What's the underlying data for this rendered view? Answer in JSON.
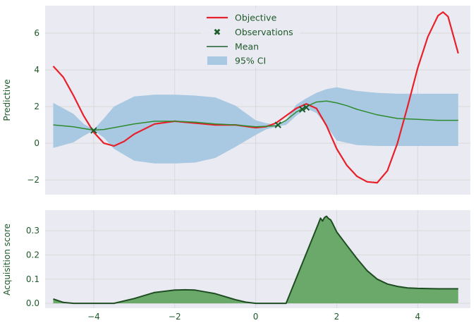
{
  "colors": {
    "objective": "#e8202a",
    "observations": "#1f5e2c",
    "mean": "#2e8b2e",
    "ci": "#a9c8e2",
    "acquisition_fill": "#6aa96a",
    "acquisition_line": "#1f4d22",
    "grid": "#d9d9d9",
    "panel_bg": "#eaeaf2",
    "tick_text": "#1e5a2a"
  },
  "chart_data": [
    {
      "type": "line",
      "ylabel": "Predictive",
      "xlim": [
        -5.2,
        5.3
      ],
      "ylim": [
        -2.8,
        7.5
      ],
      "x_ticks": [
        -4,
        -2,
        0,
        2,
        4
      ],
      "y_ticks": [
        -2,
        0,
        2,
        4,
        6
      ],
      "y_tick_labels": [
        "−2",
        "0",
        "2",
        "4",
        "6"
      ],
      "grid": true,
      "legend_position": "top-center",
      "legend": [
        "Objective",
        "Observations",
        "Mean",
        "95% CI"
      ],
      "series": [
        {
          "name": "Objective",
          "x": [
            -5.0,
            -4.75,
            -4.5,
            -4.25,
            -4.0,
            -3.75,
            -3.5,
            -3.25,
            -3.0,
            -2.5,
            -2.0,
            -1.5,
            -1.0,
            -0.5,
            0.0,
            0.25,
            0.5,
            0.75,
            1.0,
            1.25,
            1.5,
            1.75,
            2.0,
            2.25,
            2.5,
            2.75,
            3.0,
            3.25,
            3.5,
            3.75,
            4.0,
            4.25,
            4.5,
            4.625,
            4.75,
            5.0
          ],
          "y": [
            4.2,
            3.6,
            2.6,
            1.5,
            0.6,
            0.0,
            -0.15,
            0.1,
            0.5,
            1.05,
            1.2,
            1.1,
            1.0,
            1.0,
            0.85,
            0.9,
            1.1,
            1.5,
            1.9,
            2.15,
            1.9,
            0.95,
            -0.3,
            -1.2,
            -1.8,
            -2.1,
            -2.15,
            -1.5,
            0.0,
            2.0,
            4.1,
            5.8,
            6.95,
            7.15,
            6.9,
            4.9
          ]
        },
        {
          "name": "Mean",
          "x": [
            -5.0,
            -4.5,
            -4.25,
            -4.0,
            -3.75,
            -3.5,
            -3.0,
            -2.5,
            -2.0,
            -1.5,
            -1.0,
            -0.5,
            0.0,
            0.5,
            0.75,
            1.0,
            1.25,
            1.5,
            1.75,
            2.0,
            2.25,
            2.5,
            3.0,
            3.5,
            4.0,
            4.5,
            5.0
          ],
          "y": [
            1.0,
            0.9,
            0.8,
            0.72,
            0.75,
            0.85,
            1.05,
            1.2,
            1.2,
            1.15,
            1.05,
            1.0,
            0.9,
            0.95,
            1.25,
            1.7,
            2.0,
            2.25,
            2.3,
            2.2,
            2.05,
            1.85,
            1.55,
            1.35,
            1.3,
            1.25,
            1.25
          ]
        },
        {
          "name": "95% CI",
          "x": [
            -5.0,
            -4.5,
            -4.25,
            -4.0,
            -3.75,
            -3.5,
            -3.0,
            -2.5,
            -2.0,
            -1.5,
            -1.0,
            -0.5,
            0.0,
            0.25,
            0.5,
            0.75,
            1.0,
            1.25,
            1.5,
            1.75,
            2.0,
            2.5,
            3.0,
            3.5,
            4.0,
            4.5,
            5.0
          ],
          "lower": [
            -0.25,
            0.05,
            0.4,
            0.7,
            0.3,
            -0.3,
            -0.95,
            -1.1,
            -1.1,
            -1.05,
            -0.8,
            -0.2,
            0.45,
            0.75,
            0.9,
            1.0,
            1.5,
            1.9,
            1.65,
            0.95,
            0.15,
            -0.1,
            -0.15,
            -0.15,
            -0.15,
            -0.15,
            -0.15
          ],
          "upper": [
            2.2,
            1.6,
            1.05,
            0.75,
            1.35,
            2.0,
            2.55,
            2.65,
            2.65,
            2.6,
            2.5,
            2.05,
            1.25,
            1.1,
            1.0,
            1.25,
            2.1,
            2.45,
            2.75,
            2.95,
            3.05,
            2.85,
            2.75,
            2.7,
            2.7,
            2.7,
            2.7
          ]
        },
        {
          "name": "Observations",
          "x": [
            -4.0,
            0.55,
            1.15,
            1.25
          ],
          "y": [
            0.7,
            1.0,
            1.85,
            1.95
          ]
        }
      ]
    },
    {
      "type": "area",
      "ylabel": "Acquisition score",
      "xlim": [
        -5.2,
        5.3
      ],
      "ylim": [
        -0.02,
        0.385
      ],
      "x_ticks": [
        -4,
        -2,
        0,
        2,
        4
      ],
      "x_tick_labels": [
        "−4",
        "−2",
        "0",
        "2",
        "4"
      ],
      "y_ticks": [
        0.0,
        0.1,
        0.2,
        0.3
      ],
      "y_tick_labels": [
        "0.0",
        "0.1",
        "0.2",
        "0.3"
      ],
      "grid": true,
      "series": [
        {
          "name": "Acquisition score",
          "x": [
            -5.0,
            -4.75,
            -4.5,
            -4.0,
            -3.5,
            -3.0,
            -2.5,
            -2.0,
            -1.75,
            -1.5,
            -1.0,
            -0.5,
            -0.25,
            0.0,
            0.5,
            0.7,
            0.75,
            1.5,
            1.55,
            1.6,
            1.65,
            1.7,
            1.75,
            1.8,
            1.85,
            1.9,
            2.0,
            2.25,
            2.5,
            2.75,
            3.0,
            3.25,
            3.5,
            3.75,
            4.0,
            4.5,
            5.0
          ],
          "y": [
            0.018,
            0.004,
            0.0,
            0.0,
            0.0,
            0.02,
            0.045,
            0.055,
            0.056,
            0.055,
            0.04,
            0.015,
            0.005,
            0.0,
            0.0,
            0.0,
            0.0,
            0.31,
            0.33,
            0.352,
            0.34,
            0.355,
            0.36,
            0.35,
            0.345,
            0.33,
            0.295,
            0.24,
            0.185,
            0.135,
            0.1,
            0.08,
            0.07,
            0.064,
            0.062,
            0.06,
            0.06
          ]
        }
      ]
    }
  ]
}
